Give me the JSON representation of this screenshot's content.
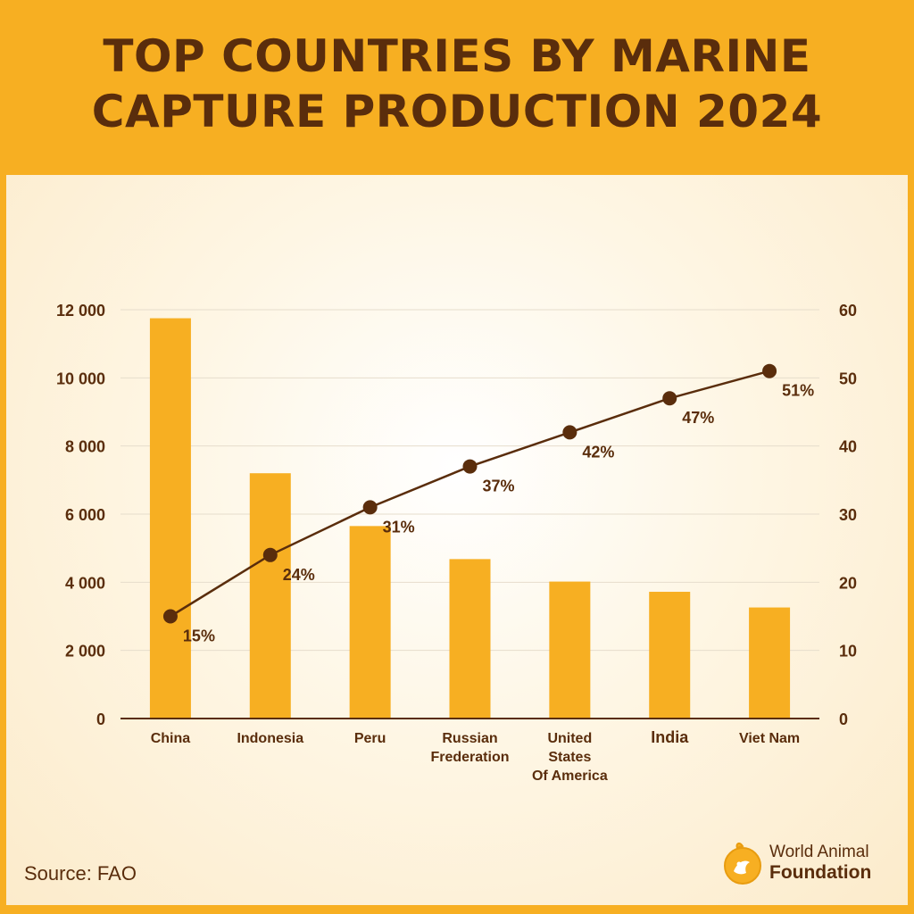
{
  "title": {
    "line1": "TOP COUNTRIES BY MARINE",
    "line2": "CAPTURE PRODUCTION 2024"
  },
  "chart_data": {
    "type": "bar",
    "categories": [
      [
        "China"
      ],
      [
        "Indonesia"
      ],
      [
        "Peru"
      ],
      [
        "Russian",
        "Frederation"
      ],
      [
        "United",
        "States",
        "Of America"
      ],
      [
        "India"
      ],
      [
        "Viet Nam"
      ]
    ],
    "series": [
      {
        "type": "bar",
        "axis": "left",
        "values": [
          11750,
          7200,
          5650,
          4680,
          4020,
          3720,
          3260
        ]
      },
      {
        "type": "line",
        "axis": "right",
        "values": [
          15,
          24,
          31,
          37,
          42,
          47,
          51
        ],
        "labels": [
          "15%",
          "24%",
          "31%",
          "37%",
          "42%",
          "47%",
          "51%"
        ]
      }
    ],
    "y_left": {
      "range": [
        0,
        12000
      ],
      "ticks": [
        "0",
        "2 000",
        "4 000",
        "6 000",
        "8 000",
        "10 000",
        "12 000"
      ]
    },
    "y_right": {
      "range": [
        0,
        60
      ],
      "ticks": [
        "0",
        "10",
        "20",
        "30",
        "40",
        "50",
        "60"
      ]
    },
    "grid": true,
    "colors": {
      "bar": "#F7AF22",
      "line": "#5A2D0C",
      "grid": "#E6DDCC",
      "text": "#5A2D0C"
    }
  },
  "source": "Source: FAO",
  "logo": {
    "line1": "World Animal",
    "line2": "Foundation",
    "icon": "world-animal-foundation-logo-icon"
  }
}
